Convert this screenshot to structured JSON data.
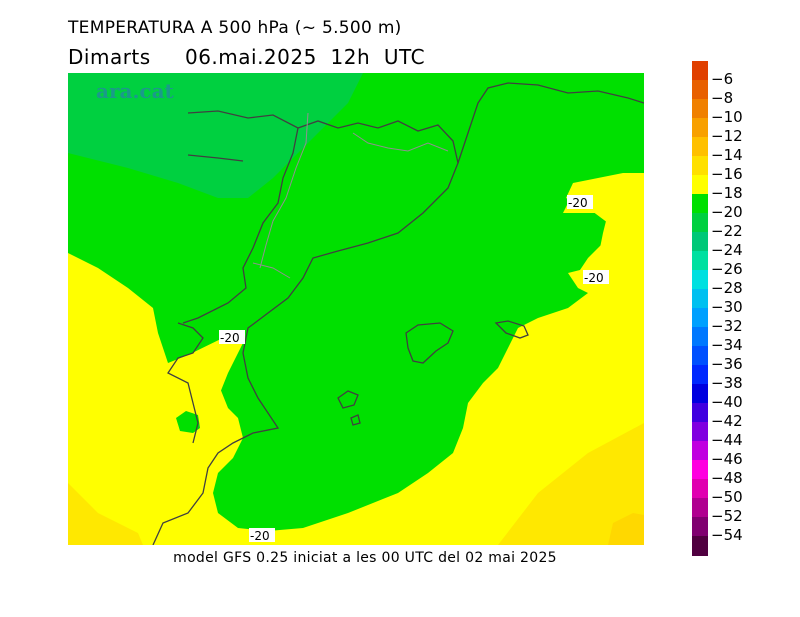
{
  "header": {
    "title": "TEMPERATURA A 500 hPa (~ 5.500 m)",
    "subtitle": "Dimarts     06.mai.2025  12h  UTC"
  },
  "brand": {
    "logo_text": "ara.cat",
    "logo_color": "#1a9a8a"
  },
  "map": {
    "background_color": "#ffff00",
    "fill_colors": {
      "t_minus_20_to_minus_22": "#00e000",
      "t_minus_22_to_minus_24": "#00d040",
      "t_minus_18_to_minus_20": "#ffff00",
      "t_minus_16_to_minus_18": "#ffe800",
      "borders": "#404040",
      "internal_borders": "#808080"
    },
    "contour_labels": [
      "-20",
      "-20",
      "-20",
      "-20"
    ]
  },
  "colorbar": {
    "ticks": [
      "-6",
      "-8",
      "-10",
      "-12",
      "-14",
      "-16",
      "-18",
      "-20",
      "-22",
      "-24",
      "-26",
      "-28",
      "-30",
      "-32",
      "-34",
      "-36",
      "-38",
      "-40",
      "-42",
      "-44",
      "-46",
      "-48",
      "-50",
      "-52",
      "-54"
    ],
    "colors": [
      "#e04000",
      "#e86000",
      "#f08000",
      "#f8a000",
      "#ffc000",
      "#ffe000",
      "#ffff00",
      "#00e000",
      "#00d040",
      "#00c878",
      "#00e0a0",
      "#00e0e0",
      "#00c0f0",
      "#00a0ff",
      "#0078ff",
      "#0050ff",
      "#0028ff",
      "#0000e0",
      "#4000e0",
      "#8000e0",
      "#c000e0",
      "#ff00e0",
      "#e000b0",
      "#b00090",
      "#800070",
      "#500040"
    ]
  },
  "footer": {
    "text": "model GFS 0.25 iniciat a les 00 UTC del 02 mai 2025"
  }
}
